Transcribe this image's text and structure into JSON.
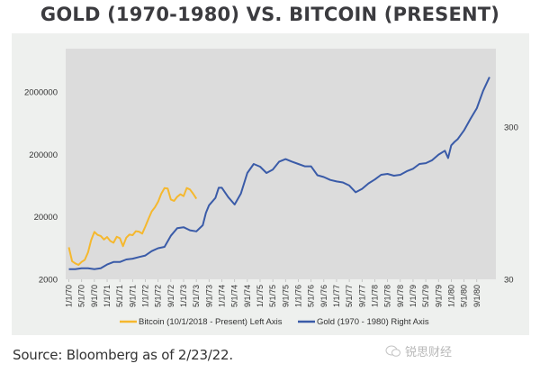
{
  "title": "GOLD (1970-1980) VS. BITCOIN (PRESENT)",
  "source": "Source: Bloomberg as of 2/23/22.",
  "watermark": "锐思财经",
  "colors": {
    "bitcoin": "#f5b82e",
    "gold": "#3a5ba8",
    "plot_bg": "#dcdcdc",
    "card_bg": "#eef0ee",
    "text": "#333333"
  },
  "chart_data": {
    "type": "line",
    "title": "GOLD (1970-1980) VS. BITCOIN (PRESENT)",
    "x_tick_labels": [
      "1/1/70",
      "5/1/70",
      "9/1/70",
      "1/1/71",
      "5/1/71",
      "9/1/71",
      "1/1/72",
      "5/1/72",
      "9/1/72",
      "1/1/73",
      "5/1/73",
      "9/1/73",
      "1/1/74",
      "5/1/74",
      "9/1/74",
      "1/1/75",
      "5/1/75",
      "9/1/75",
      "1/1/76",
      "5/1/76",
      "9/1/76",
      "1/1/77",
      "5/1/77",
      "9/1/77",
      "1/1/78",
      "5/1/78",
      "9/1/78",
      "1/1/79",
      "5/1/79",
      "9/1/79",
      "1/1/80",
      "5/1/80",
      "9/1/80"
    ],
    "x_unit": "months since 1/1/70",
    "x_range": [
      -1,
      134
    ],
    "left_axis": {
      "label": "Bitcoin",
      "scale": "log",
      "ticks": [
        2000,
        20000,
        200000,
        2000000
      ],
      "range": [
        2000,
        9900000
      ]
    },
    "right_axis": {
      "label": "Gold",
      "scale": "log",
      "ticks": [
        30,
        300
      ],
      "range": [
        30,
        985
      ]
    },
    "legend": {
      "placement": "bottom",
      "entries": [
        {
          "name": "Bitcoin (10/1/2018 - Present) Left Axis",
          "series": "bitcoin"
        },
        {
          "name": "Gold (1970 - 1980) Right Axis",
          "series": "gold"
        }
      ]
    },
    "series": [
      {
        "name": "Bitcoin (10/1/2018 - Present) Left Axis",
        "key": "bitcoin",
        "axis": "left",
        "x": [
          0,
          1,
          2,
          3,
          4,
          5,
          6,
          7,
          8,
          9,
          10,
          11,
          12,
          13,
          14,
          15,
          16,
          17,
          18,
          19,
          20,
          21,
          22,
          23,
          24,
          25,
          26,
          27,
          28,
          29,
          30,
          31,
          32,
          33,
          34,
          35,
          36,
          37,
          38,
          39,
          40
        ],
        "values": [
          6500,
          3900,
          3600,
          3400,
          3800,
          4100,
          5400,
          8500,
          11500,
          10300,
          9900,
          8700,
          9500,
          8200,
          7700,
          9600,
          9100,
          6800,
          9300,
          10400,
          10200,
          11800,
          11600,
          10800,
          14000,
          18800,
          24500,
          28500,
          35000,
          47000,
          58000,
          57000,
          38000,
          36000,
          42000,
          46000,
          43000,
          58000,
          55000,
          47000,
          39000
        ]
      },
      {
        "name": "Gold (1970 - 1980) Right Axis",
        "key": "gold",
        "axis": "right",
        "x": [
          0,
          2,
          4,
          6,
          8,
          10,
          12,
          14,
          16,
          18,
          20,
          22,
          24,
          26,
          28,
          30,
          32,
          34,
          36,
          38,
          40,
          42,
          43,
          44,
          46,
          47,
          48,
          50,
          52,
          54,
          56,
          58,
          60,
          62,
          64,
          66,
          68,
          70,
          72,
          74,
          76,
          78,
          80,
          82,
          84,
          86,
          88,
          90,
          92,
          94,
          96,
          98,
          100,
          102,
          104,
          106,
          108,
          110,
          112,
          114,
          116,
          118,
          119,
          120,
          121,
          122,
          124,
          126,
          128,
          130,
          132
        ],
        "values": [
          35,
          35,
          35.5,
          35.5,
          35,
          35.5,
          37.5,
          39,
          39,
          40.5,
          41,
          42,
          43,
          46,
          48,
          49,
          58,
          65,
          66,
          63,
          62,
          68,
          82,
          92,
          103,
          120,
          120,
          104,
          93,
          110,
          150,
          172,
          165,
          150,
          158,
          178,
          185,
          178,
          172,
          166,
          166,
          145,
          141,
          135,
          132,
          130,
          124,
          112,
          118,
          128,
          136,
          146,
          148,
          144,
          146,
          154,
          160,
          172,
          174,
          182,
          198,
          210,
          188,
          228,
          240,
          250,
          286,
          340,
          400,
          520,
          640
        ]
      }
    ]
  }
}
